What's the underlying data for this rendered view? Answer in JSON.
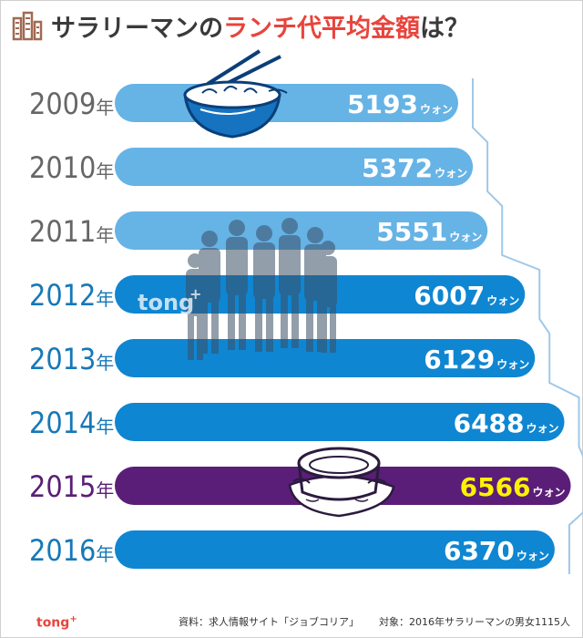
{
  "title": {
    "part1": "サラリーマンの",
    "part2": "ランチ代平均金額",
    "part3": "は？"
  },
  "chart_data": {
    "type": "bar",
    "orientation": "horizontal",
    "title": "サラリーマンのランチ代平均金額は？",
    "categories": [
      "2009年",
      "2010年",
      "2011年",
      "2012年",
      "2013年",
      "2014年",
      "2015年",
      "2016年"
    ],
    "values": [
      5193,
      5372,
      5551,
      6007,
      6129,
      6488,
      6566,
      6370
    ],
    "unit": "ウォン",
    "highlight_category": "2015年",
    "colors": {
      "early_bar": "#66b3e6",
      "bar": "#0f86d2",
      "highlight_bar": "#5a1e78",
      "highlight_value": "#fff200",
      "year_early": "#666666",
      "year": "#1678b8",
      "year_highlight": "#5a1e78",
      "trend_line": "#9fc8e8"
    }
  },
  "watermark": "tong",
  "footer": {
    "logo": "tong",
    "source": "資料：求人情報サイト「ジョブコリア」",
    "target": "対象：2016年サラリーマンの男女1115人"
  },
  "icons": [
    "building-icon",
    "noodle-bowl-illustration",
    "crowd-silhouette-illustration",
    "stew-pot-illustration"
  ]
}
